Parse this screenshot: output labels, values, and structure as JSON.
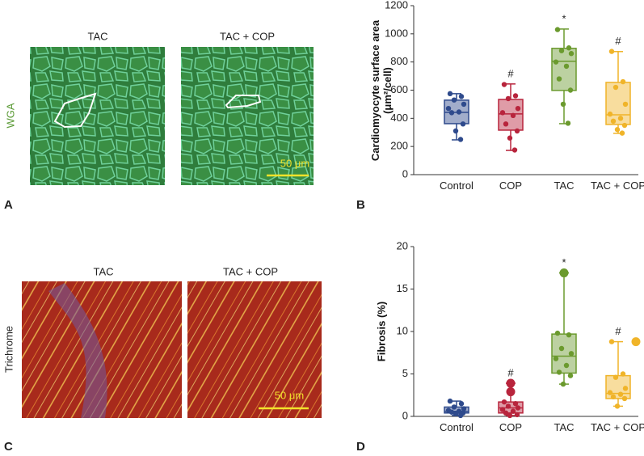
{
  "panels": {
    "a": {
      "label": "A",
      "left_title": "TAC",
      "right_title": "TAC + COP",
      "stain": "WGA",
      "scale": "50 μm"
    },
    "b": {
      "label": "B"
    },
    "c": {
      "label": "C",
      "left_title": "TAC",
      "right_title": "TAC + COP",
      "stain": "Trichrome",
      "scale": "50 μm"
    },
    "d": {
      "label": "D"
    }
  },
  "chart_data": [
    {
      "type": "box",
      "ylabel": "Cardiomyocyte surface area (μm²/cell)",
      "ylim": [
        0,
        1200
      ],
      "yticks": [
        0,
        200,
        400,
        600,
        800,
        1000,
        1200
      ],
      "categories": [
        "Control",
        "COP",
        "TAC",
        "TAC + COP"
      ],
      "annotations": [
        null,
        "#",
        "*",
        "#"
      ],
      "boxes": [
        {
          "color": "#2e4a8c",
          "min": 247,
          "q1": 362,
          "median": 442,
          "q3": 529,
          "max": 575,
          "points": [
            575,
            555,
            530,
            500,
            470,
            445,
            440,
            360,
            310,
            250
          ]
        },
        {
          "color": "#b8243c",
          "min": 172,
          "q1": 316,
          "median": 431,
          "q3": 534,
          "max": 644,
          "points": [
            640,
            560,
            540,
            470,
            440,
            420,
            360,
            310,
            260,
            175
          ]
        },
        {
          "color": "#6b9a2e",
          "min": 362,
          "q1": 598,
          "median": 805,
          "q3": 897,
          "max": 1034,
          "points": [
            1030,
            900,
            880,
            860,
            800,
            770,
            680,
            600,
            500,
            365
          ]
        },
        {
          "color": "#f0b429",
          "min": 293,
          "q1": 356,
          "median": 425,
          "q3": 655,
          "max": 874,
          "points": [
            875,
            660,
            620,
            500,
            430,
            400,
            380,
            350,
            320,
            295
          ]
        }
      ]
    },
    {
      "type": "box",
      "ylabel": "Fibrosis (%)",
      "ylim": [
        0,
        20
      ],
      "yticks": [
        0,
        5,
        10,
        15,
        20
      ],
      "categories": [
        "Control",
        "COP",
        "TAC",
        "TAC + COP"
      ],
      "annotations": [
        null,
        "#",
        "*",
        "#"
      ],
      "boxes": [
        {
          "color": "#2e4a8c",
          "min": 0.1,
          "q1": 0.4,
          "median": 0.6,
          "q3": 1.1,
          "max": 1.8,
          "points": [
            1.8,
            1.5,
            1.1,
            0.9,
            0.7,
            0.6,
            0.5,
            0.4,
            0.3,
            0.1
          ],
          "outliers": []
        },
        {
          "color": "#b8243c",
          "min": 0.1,
          "q1": 0.4,
          "median": 1.0,
          "q3": 1.7,
          "max": 3.9,
          "points": [
            1.7,
            1.5,
            1.2,
            1.0,
            0.8,
            0.6,
            0.4,
            0.2,
            0.1
          ],
          "outliers": [
            3.9,
            2.9
          ]
        },
        {
          "color": "#6b9a2e",
          "min": 3.8,
          "q1": 5.1,
          "median": 7.1,
          "q3": 9.7,
          "max": 16.9,
          "points": [
            9.8,
            9.6,
            8.0,
            7.4,
            6.8,
            6.0,
            5.2,
            4.8,
            3.8
          ],
          "outliers": [
            16.9
          ]
        },
        {
          "color": "#f0b429",
          "min": 1.2,
          "q1": 2.1,
          "median": 2.7,
          "q3": 4.8,
          "max": 8.8,
          "points": [
            8.8,
            5.0,
            4.6,
            3.3,
            2.8,
            2.6,
            2.3,
            2.1,
            1.2
          ],
          "outliers": [
            8.8
          ]
        }
      ]
    }
  ]
}
